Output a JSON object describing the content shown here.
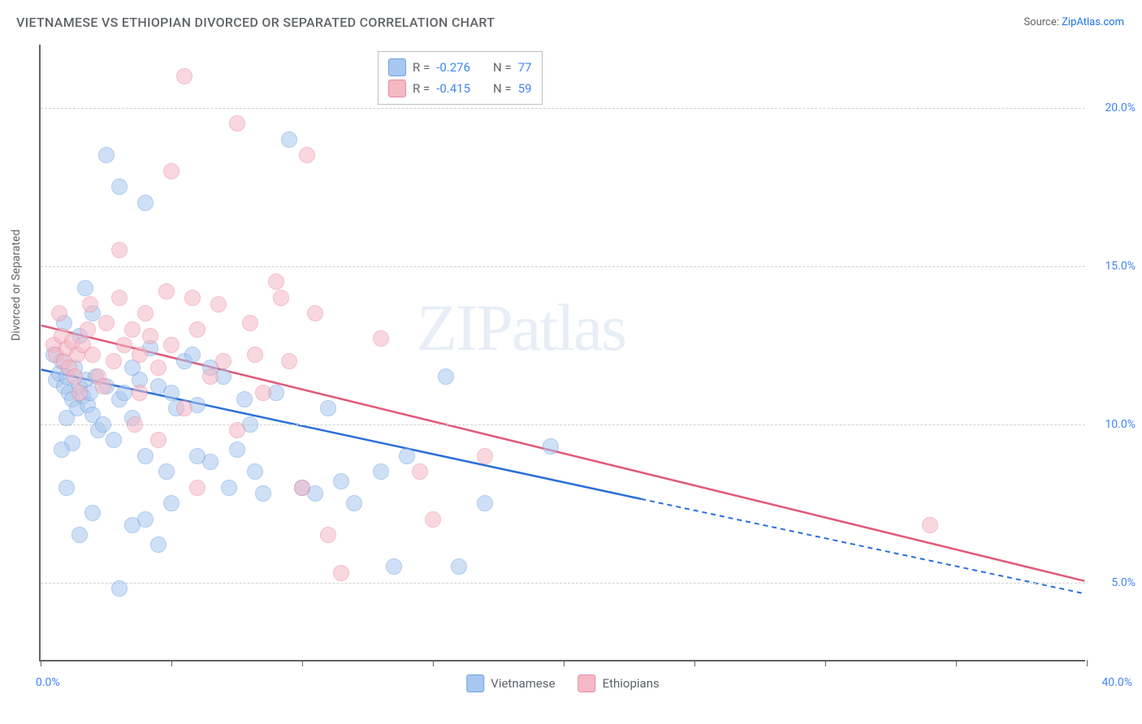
{
  "title": "VIETNAMESE VS ETHIOPIAN DIVORCED OR SEPARATED CORRELATION CHART",
  "source_label": "Source:",
  "source_name": "ZipAtlas.com",
  "ylabel": "Divorced or Separated",
  "watermark": "ZIPatlas",
  "chart": {
    "type": "scatter",
    "xlim": [
      0,
      40
    ],
    "ylim": [
      2.5,
      22
    ],
    "xtick_positions": [
      0,
      5,
      10,
      15,
      20,
      25,
      30,
      35,
      40
    ],
    "ytick_positions": [
      5,
      10,
      15,
      20
    ],
    "ytick_labels": [
      "5.0%",
      "10.0%",
      "15.0%",
      "20.0%"
    ],
    "x_start_label": "0.0%",
    "x_end_label": "40.0%",
    "background_color": "#ffffff",
    "grid_color": "#d0d0d0",
    "axis_color": "#5f6368",
    "marker_radius": 10,
    "marker_opacity": 0.55,
    "line_width": 2.5
  },
  "series": [
    {
      "name": "Vietnamese",
      "color_fill": "#a8c7f0",
      "color_stroke": "#6fa1e0",
      "line_color": "#2b6fd6",
      "R": "-0.276",
      "N": "77",
      "trend": {
        "x1": 0,
        "y1": 11.7,
        "x2": 23,
        "y2": 7.6,
        "x2_dash": 40,
        "y2_dash": 4.6
      },
      "points": [
        [
          0.5,
          12.2
        ],
        [
          0.6,
          11.4
        ],
        [
          0.7,
          11.6
        ],
        [
          0.8,
          12.0
        ],
        [
          0.9,
          11.2
        ],
        [
          1.0,
          11.5
        ],
        [
          1.1,
          11.0
        ],
        [
          1.2,
          10.8
        ],
        [
          1.3,
          11.8
        ],
        [
          1.4,
          10.5
        ],
        [
          1.5,
          11.2
        ],
        [
          1.0,
          10.2
        ],
        [
          1.6,
          10.9
        ],
        [
          1.7,
          11.4
        ],
        [
          1.8,
          10.6
        ],
        [
          1.9,
          11.0
        ],
        [
          2.0,
          10.3
        ],
        [
          2.1,
          11.5
        ],
        [
          2.2,
          9.8
        ],
        [
          2.4,
          10.0
        ],
        [
          2.5,
          11.2
        ],
        [
          1.2,
          9.4
        ],
        [
          0.8,
          9.2
        ],
        [
          2.8,
          9.5
        ],
        [
          3.0,
          10.8
        ],
        [
          3.2,
          11.0
        ],
        [
          3.5,
          10.2
        ],
        [
          3.8,
          11.4
        ],
        [
          4.0,
          9.0
        ],
        [
          4.2,
          12.4
        ],
        [
          4.5,
          11.2
        ],
        [
          4.8,
          8.5
        ],
        [
          5.0,
          11.0
        ],
        [
          5.2,
          10.5
        ],
        [
          5.5,
          12.0
        ],
        [
          4.0,
          17.0
        ],
        [
          1.7,
          14.3
        ],
        [
          2.5,
          18.5
        ],
        [
          3.0,
          17.5
        ],
        [
          1.0,
          8.0
        ],
        [
          2.0,
          7.2
        ],
        [
          1.5,
          6.5
        ],
        [
          3.5,
          6.8
        ],
        [
          4.5,
          6.2
        ],
        [
          3.0,
          4.8
        ],
        [
          6.0,
          10.6
        ],
        [
          6.5,
          8.8
        ],
        [
          7.0,
          11.5
        ],
        [
          7.2,
          8.0
        ],
        [
          7.5,
          9.2
        ],
        [
          8.0,
          10.0
        ],
        [
          8.2,
          8.5
        ],
        [
          8.5,
          7.8
        ],
        [
          9.0,
          11.0
        ],
        [
          9.5,
          19.0
        ],
        [
          10.0,
          8.0
        ],
        [
          10.5,
          7.8
        ],
        [
          11.0,
          10.5
        ],
        [
          11.5,
          8.2
        ],
        [
          12.0,
          7.5
        ],
        [
          13.0,
          8.5
        ],
        [
          13.5,
          5.5
        ],
        [
          15.5,
          11.5
        ],
        [
          14.0,
          9.0
        ],
        [
          17.0,
          7.5
        ],
        [
          16.0,
          5.5
        ],
        [
          19.5,
          9.3
        ],
        [
          2.0,
          13.5
        ],
        [
          6.5,
          11.8
        ],
        [
          5.8,
          12.2
        ],
        [
          4.0,
          7.0
        ],
        [
          5.0,
          7.5
        ],
        [
          1.5,
          12.8
        ],
        [
          0.9,
          13.2
        ],
        [
          3.5,
          11.8
        ],
        [
          6.0,
          9.0
        ],
        [
          7.8,
          10.8
        ]
      ]
    },
    {
      "name": "Ethiopians",
      "color_fill": "#f5b8c5",
      "color_stroke": "#e88ba2",
      "line_color": "#e05a7a",
      "R": "-0.415",
      "N": "59",
      "trend": {
        "x1": 0,
        "y1": 13.1,
        "x2": 40,
        "y2": 5.0,
        "x2_dash": 40,
        "y2_dash": 5.0
      },
      "points": [
        [
          0.5,
          12.5
        ],
        [
          0.6,
          12.2
        ],
        [
          0.8,
          12.8
        ],
        [
          0.9,
          12.0
        ],
        [
          1.0,
          12.4
        ],
        [
          1.1,
          11.8
        ],
        [
          1.2,
          12.6
        ],
        [
          1.3,
          11.5
        ],
        [
          1.4,
          12.2
        ],
        [
          1.5,
          11.0
        ],
        [
          1.6,
          12.5
        ],
        [
          1.8,
          13.0
        ],
        [
          2.0,
          12.2
        ],
        [
          2.2,
          11.5
        ],
        [
          2.5,
          13.2
        ],
        [
          2.8,
          12.0
        ],
        [
          3.0,
          14.0
        ],
        [
          3.2,
          12.5
        ],
        [
          3.5,
          13.0
        ],
        [
          3.8,
          11.0
        ],
        [
          3.0,
          15.5
        ],
        [
          4.0,
          13.5
        ],
        [
          4.5,
          11.8
        ],
        [
          4.8,
          14.2
        ],
        [
          5.0,
          12.5
        ],
        [
          5.5,
          10.5
        ],
        [
          5.8,
          14.0
        ],
        [
          6.0,
          13.0
        ],
        [
          6.5,
          11.5
        ],
        [
          5.0,
          18.0
        ],
        [
          7.5,
          19.5
        ],
        [
          5.5,
          21.0
        ],
        [
          8.0,
          13.2
        ],
        [
          7.0,
          12.0
        ],
        [
          8.5,
          11.0
        ],
        [
          4.5,
          9.5
        ],
        [
          6.0,
          8.0
        ],
        [
          7.5,
          9.8
        ],
        [
          9.0,
          14.5
        ],
        [
          9.5,
          12.0
        ],
        [
          9.2,
          14.0
        ],
        [
          10.0,
          8.0
        ],
        [
          10.5,
          13.5
        ],
        [
          10.2,
          18.5
        ],
        [
          11.0,
          6.5
        ],
        [
          11.5,
          5.3
        ],
        [
          13.0,
          12.7
        ],
        [
          14.5,
          8.5
        ],
        [
          15.0,
          7.0
        ],
        [
          17.0,
          9.0
        ],
        [
          34.0,
          6.8
        ],
        [
          0.7,
          13.5
        ],
        [
          1.9,
          13.8
        ],
        [
          2.4,
          11.2
        ],
        [
          3.6,
          10.0
        ],
        [
          4.2,
          12.8
        ],
        [
          6.8,
          13.8
        ],
        [
          8.2,
          12.2
        ],
        [
          3.8,
          12.2
        ]
      ]
    }
  ],
  "legend_top": {
    "R_label": "R =",
    "N_label": "N ="
  },
  "legend_bottom": [
    {
      "label": "Vietnamese",
      "fill": "#a8c7f0",
      "stroke": "#6fa1e0"
    },
    {
      "label": "Ethiopians",
      "fill": "#f5b8c5",
      "stroke": "#e88ba2"
    }
  ]
}
